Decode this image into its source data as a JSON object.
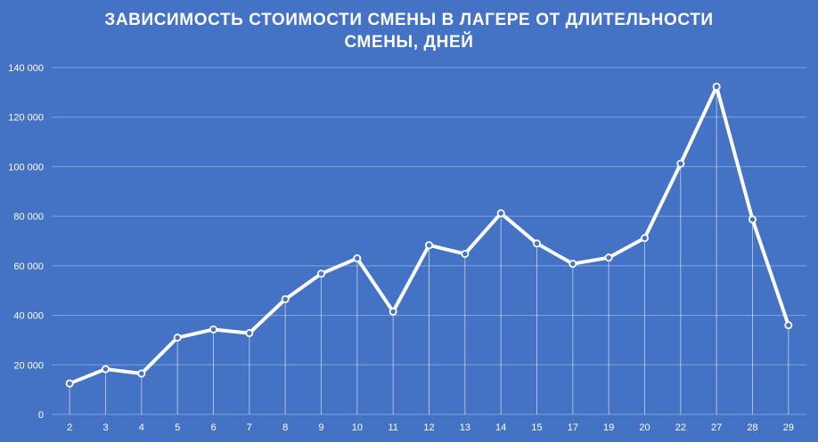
{
  "chart_data": {
    "type": "line",
    "title_lines": [
      "ЗАВИСИМОСТЬ СТОИМОСТИ СМЕНЫ В ЛАГЕРЕ ОТ ДЛИТЕЛЬНОСТИ",
      "СМЕНЫ, ДНЕЙ"
    ],
    "xlabel": "",
    "ylabel": "",
    "categories": [
      "2",
      "3",
      "4",
      "5",
      "6",
      "7",
      "8",
      "9",
      "10",
      "11",
      "12",
      "13",
      "14",
      "15",
      "17",
      "19",
      "20",
      "22",
      "27",
      "28",
      "29"
    ],
    "values": [
      12500,
      18300,
      16500,
      31000,
      34300,
      32800,
      46500,
      56800,
      63000,
      41500,
      68300,
      64800,
      81200,
      69000,
      60800,
      63300,
      71200,
      101200,
      132300,
      78700,
      36000
    ],
    "ylim": [
      0,
      140000
    ],
    "yticks": [
      0,
      20000,
      40000,
      60000,
      80000,
      100000,
      120000,
      140000
    ],
    "ytick_labels": [
      "0",
      "20 000",
      "40 000",
      "60 000",
      "80 000",
      "100 000",
      "120 000",
      "140 000"
    ],
    "grid": true,
    "drop_lines": true,
    "legend": "none"
  },
  "colors": {
    "background": "#4472c4",
    "line": "#ffffff",
    "text": "#ffffff"
  }
}
